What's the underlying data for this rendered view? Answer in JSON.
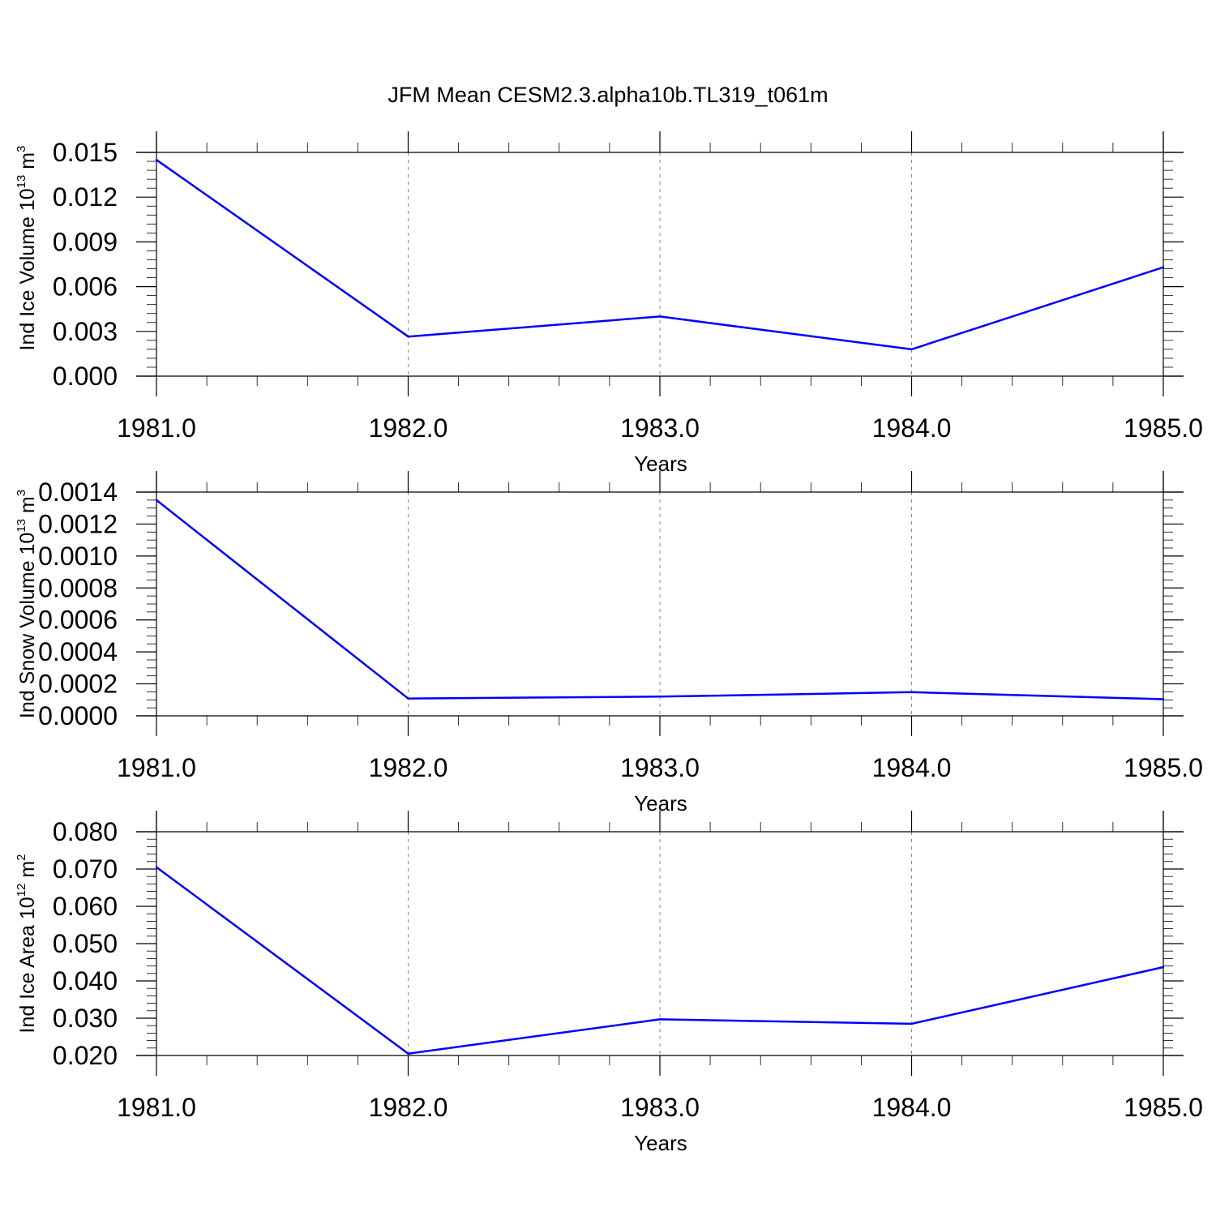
{
  "title": "JFM Mean CESM2.3.alpha10b.TL319_t061m",
  "chart_data": [
    {
      "type": "line",
      "xlabel": "Years",
      "ylabel": {
        "text": "Ind Ice Volume 10",
        "exp": "13",
        "unit": "m",
        "unit_exp": "3"
      },
      "xlim": [
        1981.0,
        1985.0
      ],
      "ylim": [
        0.0,
        0.015
      ],
      "x_ticks": [
        1981.0,
        1982.0,
        1983.0,
        1984.0,
        1985.0
      ],
      "x_tick_labels": [
        "1981.0",
        "1982.0",
        "1983.0",
        "1984.0",
        "1985.0"
      ],
      "y_ticks": [
        0.0,
        0.003,
        0.006,
        0.009,
        0.012,
        0.015
      ],
      "y_tick_labels": [
        "0.000",
        "0.003",
        "0.006",
        "0.009",
        "0.012",
        "0.015"
      ],
      "y_minor_per_major": 5,
      "grid": "vertical dashed at major x ticks",
      "color": "#0000ff",
      "x": [
        1981,
        1982,
        1983,
        1984,
        1985
      ],
      "y": [
        0.0145,
        0.00265,
        0.004,
        0.0018,
        0.0073
      ]
    },
    {
      "type": "line",
      "xlabel": "Years",
      "ylabel": {
        "text": "Ind Snow Volume 10",
        "exp": "13",
        "unit": "m",
        "unit_exp": "3"
      },
      "xlim": [
        1981.0,
        1985.0
      ],
      "ylim": [
        0.0,
        0.0014
      ],
      "x_ticks": [
        1981.0,
        1982.0,
        1983.0,
        1984.0,
        1985.0
      ],
      "x_tick_labels": [
        "1981.0",
        "1982.0",
        "1983.0",
        "1984.0",
        "1985.0"
      ],
      "y_ticks": [
        0.0,
        0.0002,
        0.0004,
        0.0006,
        0.0008,
        0.001,
        0.0012,
        0.0014
      ],
      "y_tick_labels": [
        "0.0000",
        "0.0002",
        "0.0004",
        "0.0006",
        "0.0008",
        "0.0010",
        "0.0012",
        "0.0014"
      ],
      "y_minor_per_major": 4,
      "grid": "vertical dashed at major x ticks",
      "color": "#0000ff",
      "x": [
        1981,
        1982,
        1983,
        1984,
        1985
      ],
      "y": [
        0.00135,
        0.000108,
        0.00012,
        0.000148,
        0.000104
      ]
    },
    {
      "type": "line",
      "xlabel": "Years",
      "ylabel": {
        "text": "Ind Ice Area 10",
        "exp": "12",
        "unit": "m",
        "unit_exp": "2"
      },
      "xlim": [
        1981.0,
        1985.0
      ],
      "ylim": [
        0.02,
        0.08
      ],
      "x_ticks": [
        1981.0,
        1982.0,
        1983.0,
        1984.0,
        1985.0
      ],
      "x_tick_labels": [
        "1981.0",
        "1982.0",
        "1983.0",
        "1984.0",
        "1985.0"
      ],
      "y_ticks": [
        0.02,
        0.03,
        0.04,
        0.05,
        0.06,
        0.07,
        0.08
      ],
      "y_tick_labels": [
        "0.020",
        "0.030",
        "0.040",
        "0.050",
        "0.060",
        "0.070",
        "0.080"
      ],
      "y_minor_per_major": 5,
      "grid": "vertical dashed at major x ticks",
      "color": "#0000ff",
      "x": [
        1981,
        1982,
        1983,
        1984,
        1985
      ],
      "y": [
        0.0705,
        0.0205,
        0.0297,
        0.0285,
        0.0437
      ]
    }
  ]
}
